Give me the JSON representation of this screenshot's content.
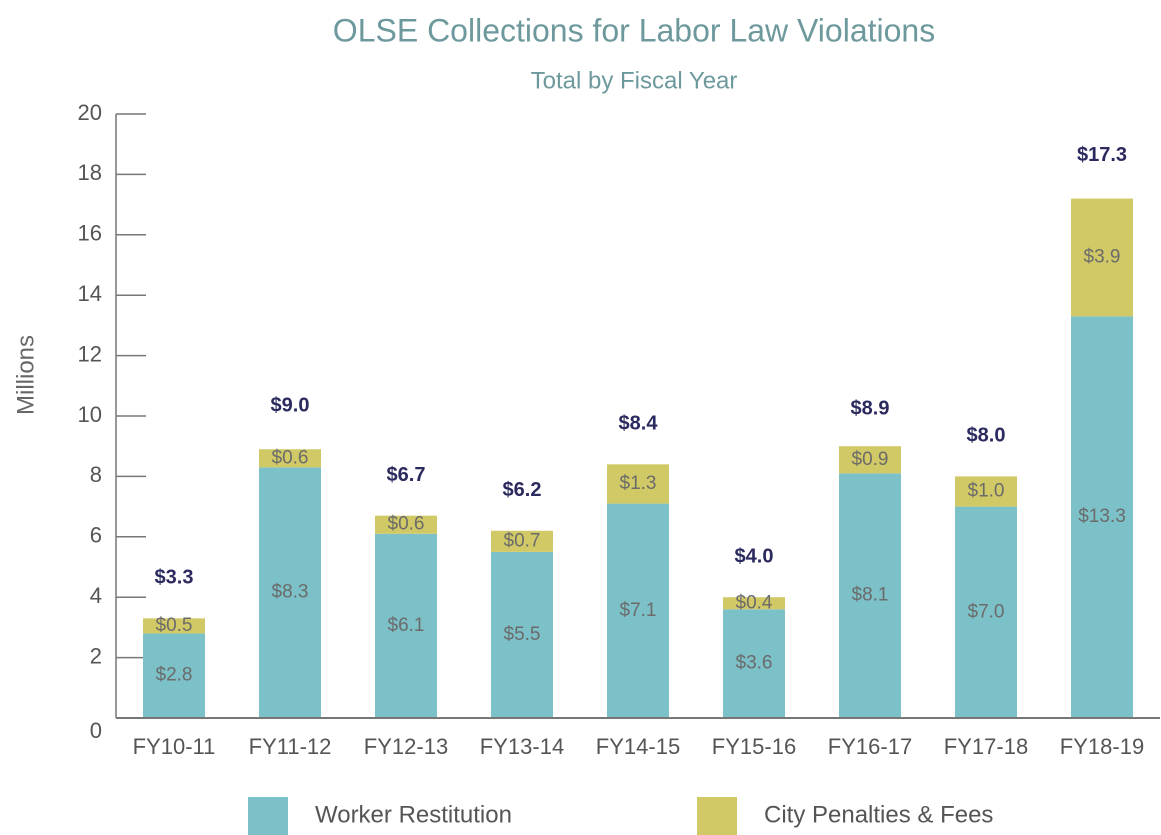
{
  "chart_data": {
    "type": "stacked_bar",
    "title": "OLSE Collections for Labor Law Violations",
    "subtitle": "Total by Fiscal Year",
    "y_label": "Millions",
    "categories": [
      "FY10-11",
      "FY11-12",
      "FY12-13",
      "FY13-14",
      "FY14-15",
      "FY15-16",
      "FY16-17",
      "FY17-18",
      "FY18-19"
    ],
    "series": [
      {
        "name": "Worker Restitution",
        "color": "#7cc0c8",
        "values": [
          2.8,
          8.3,
          6.1,
          5.5,
          7.1,
          3.6,
          8.1,
          7.0,
          13.3
        ],
        "value_labels": [
          "$2.8",
          "$8.3",
          "$6.1",
          "$5.5",
          "$7.1",
          "$3.6",
          "$8.1",
          "$7.0",
          "$13.3"
        ]
      },
      {
        "name": "City Penalties & Fees",
        "color": "#d1c966",
        "values": [
          0.5,
          0.6,
          0.6,
          0.7,
          1.3,
          0.4,
          0.9,
          1.0,
          3.9
        ],
        "value_labels": [
          "$0.5",
          "$0.6",
          "$0.6",
          "$0.7",
          "$1.3",
          "$0.4",
          "$0.9",
          "$1.0",
          "$3.9"
        ]
      }
    ],
    "totals": [
      3.3,
      9.0,
      6.7,
      6.2,
      8.4,
      4.0,
      8.9,
      8.0,
      17.3
    ],
    "total_labels": [
      "$3.3",
      "$9.0",
      "$6.7",
      "$6.2",
      "$8.4",
      "$4.0",
      "$8.9",
      "$8.0",
      "$17.3"
    ],
    "ylim": [
      0,
      20
    ],
    "yticks": [
      0,
      2,
      4,
      6,
      8,
      10,
      12,
      14,
      16,
      18,
      20
    ],
    "legend": "bottom"
  }
}
